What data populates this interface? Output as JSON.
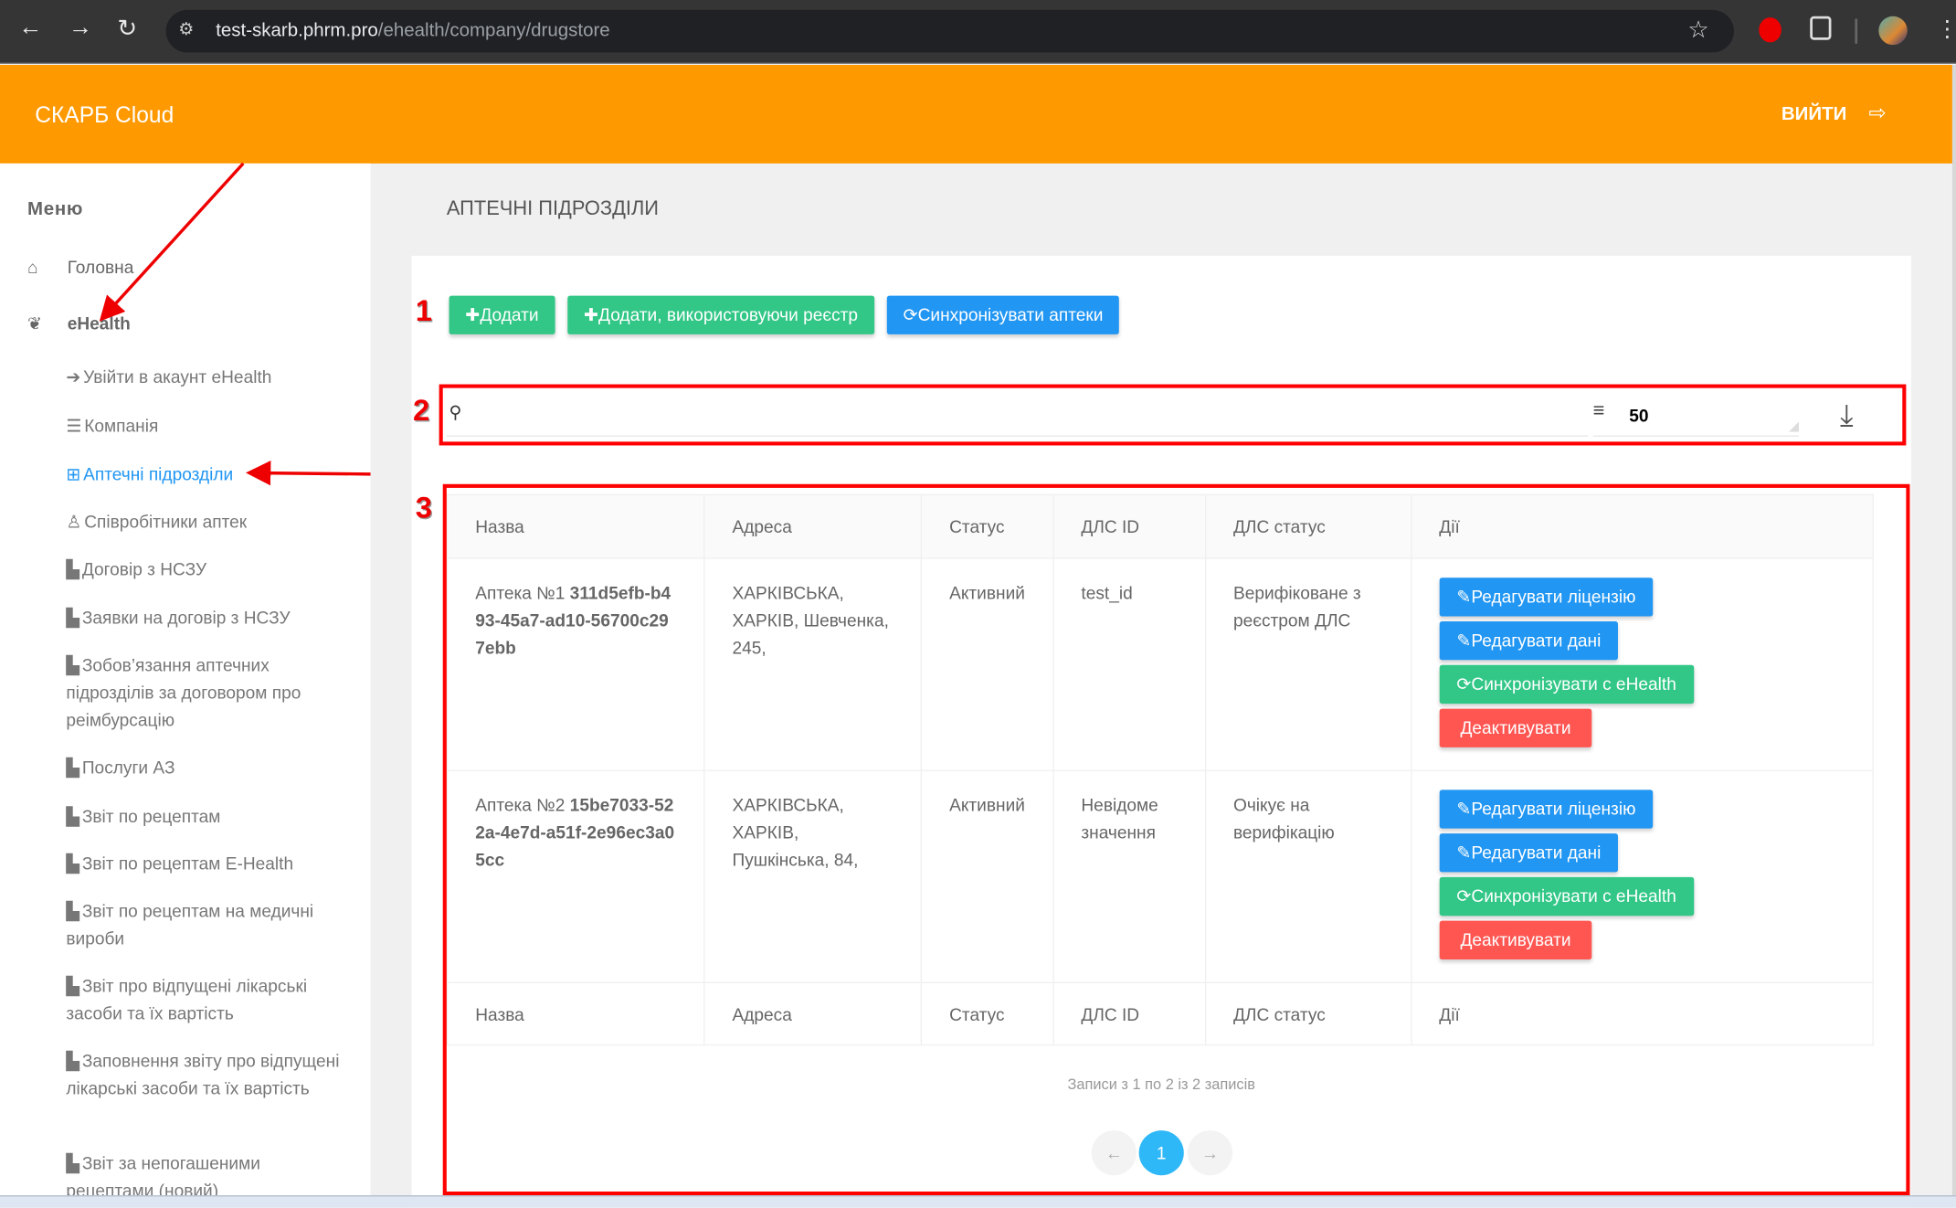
{
  "browser": {
    "url_host": "test-skarb.phrm.pro",
    "url_path": "/ehealth/company/drugstore",
    "icons": [
      "back-icon",
      "forward-icon",
      "reload-icon",
      "site-info-icon",
      "star-icon",
      "extension-icon",
      "puzzle-icon",
      "profile-avatar",
      "menu-icon"
    ]
  },
  "header": {
    "brand": "СКАРБ Cloud",
    "logout": "ВИЙТИ",
    "brand_color": "#ff9900"
  },
  "sidebar": {
    "title": "Меню",
    "items": [
      {
        "label": "Головна",
        "icon": "home-icon"
      },
      {
        "label": "eHealth",
        "icon": "leaf-icon"
      }
    ],
    "subitems": [
      {
        "label": "Увійти в акаунт eHealth",
        "icon": "sign-in-icon"
      },
      {
        "label": "Компанія",
        "icon": "database-icon"
      },
      {
        "label": "Аптечні підрозділи",
        "icon": "plus-square-icon",
        "active": true
      },
      {
        "label": "Співробітники аптек",
        "icon": "user-md-icon"
      },
      {
        "label": "Договір з НСЗУ",
        "icon": "file-icon"
      },
      {
        "label": "Заявки на договір з НСЗУ",
        "icon": "file-icon"
      },
      {
        "label": "Зобов’язання аптечних підрозділів за договором про реімбурсацію",
        "icon": "file-icon"
      },
      {
        "label": "Послуги АЗ",
        "icon": "file-icon"
      },
      {
        "label": "Звіт по рецептам",
        "icon": "file-icon"
      },
      {
        "label": "Звіт по рецептам E-Health",
        "icon": "file-icon"
      },
      {
        "label": "Звіт по рецептам на медичні вироби",
        "icon": "file-icon"
      },
      {
        "label": "Звіт про відпущені лікарські засоби та їх вартість",
        "icon": "file-icon"
      },
      {
        "label": "Заповнення звіту про відпущені лікарські засоби та їх вартість",
        "icon": "file-icon"
      },
      {
        "label": "Звіт за непогашеними рецептами (новий)",
        "icon": "file-icon"
      }
    ]
  },
  "page": {
    "title": "АПТЕЧНІ ПІДРОЗДІЛИ"
  },
  "toolbar": {
    "add": "Додати",
    "add_registry": "Додати, використовуючи реєстр",
    "sync": "Синхронізувати аптеки"
  },
  "filter": {
    "search_placeholder": "",
    "page_size": "50"
  },
  "annotations": [
    "1",
    "2",
    "3"
  ],
  "table": {
    "columns": [
      "Назва",
      "Адреса",
      "Статус",
      "ДЛС ID",
      "ДЛС статус",
      "Дії"
    ],
    "rows": [
      {
        "name": "Аптека №1",
        "id": "311d5efb-b493-45a7-ad10-56700c297ebb",
        "address": "ХАРКІВСЬКА, ХАРКІВ, Шевченка, 245,",
        "status": "Активний",
        "dls_id": "test_id",
        "dls_status": "Верифіковане з реєстром ДЛС"
      },
      {
        "name": "Аптека №2",
        "id": "15be7033-522a-4e7d-a51f-2e96ec3a05cc",
        "address": "ХАРКІВСЬКА, ХАРКІВ, Пушкінська, 84,",
        "status": "Активний",
        "dls_id": "Невідоме значення",
        "dls_status": "Очікує на верифікацію"
      }
    ],
    "actions": {
      "edit_license": "Редагувати ліцензію",
      "edit_data": "Редагувати дані",
      "sync_ehealth": "Синхронізувати с eHealth",
      "deactivate": "Деактивувати"
    }
  },
  "pagination": {
    "info": "Записи з 1 по 2 із 2 записів",
    "prev": "←",
    "current": "1",
    "next": "→"
  }
}
